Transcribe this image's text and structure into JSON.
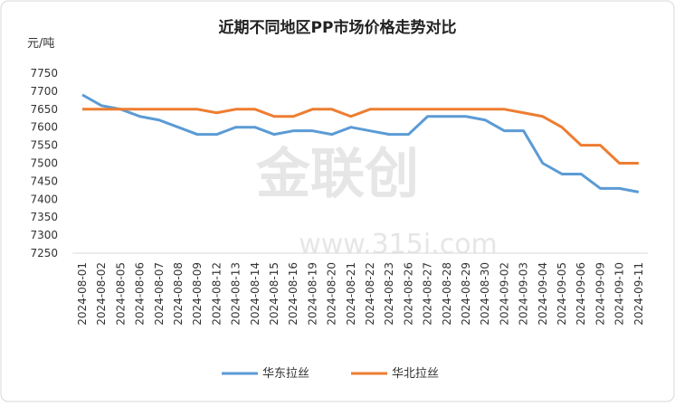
{
  "chart_data": {
    "type": "line",
    "title": "近期不同地区PP市场价格走势对比",
    "y_label": "元/吨",
    "watermark": "金联创",
    "watermark_url": "www.315i.com",
    "categories": [
      "2024-08-01",
      "2024-08-02",
      "2024-08-05",
      "2024-08-06",
      "2024-08-07",
      "2024-08-08",
      "2024-08-09",
      "2024-08-12",
      "2024-08-13",
      "2024-08-14",
      "2024-08-15",
      "2024-08-16",
      "2024-08-19",
      "2024-08-20",
      "2024-08-21",
      "2024-08-22",
      "2024-08-23",
      "2024-08-26",
      "2024-08-27",
      "2024-08-28",
      "2024-08-29",
      "2024-08-30",
      "2024-09-02",
      "2024-09-03",
      "2024-09-04",
      "2024-09-05",
      "2024-09-06",
      "2024-09-09",
      "2024-09-10",
      "2024-09-11"
    ],
    "series": [
      {
        "name": "华东拉丝",
        "color": "#5b9bd5",
        "values": [
          7690,
          7660,
          7650,
          7630,
          7620,
          7600,
          7580,
          7580,
          7600,
          7600,
          7580,
          7590,
          7590,
          7580,
          7600,
          7590,
          7580,
          7580,
          7630,
          7630,
          7630,
          7620,
          7590,
          7590,
          7500,
          7470,
          7470,
          7430,
          7430,
          7420
        ]
      },
      {
        "name": "华北拉丝",
        "color": "#ed7d31",
        "values": [
          7650,
          7650,
          7650,
          7650,
          7650,
          7650,
          7650,
          7640,
          7650,
          7650,
          7630,
          7630,
          7650,
          7650,
          7630,
          7650,
          7650,
          7650,
          7650,
          7650,
          7650,
          7650,
          7650,
          7640,
          7630,
          7600,
          7550,
          7550,
          7500,
          7500
        ]
      }
    ],
    "ylim": [
      7250,
      7750
    ],
    "yticks": [
      7250,
      7300,
      7350,
      7400,
      7450,
      7500,
      7550,
      7600,
      7650,
      7700,
      7750
    ],
    "grid": false
  }
}
